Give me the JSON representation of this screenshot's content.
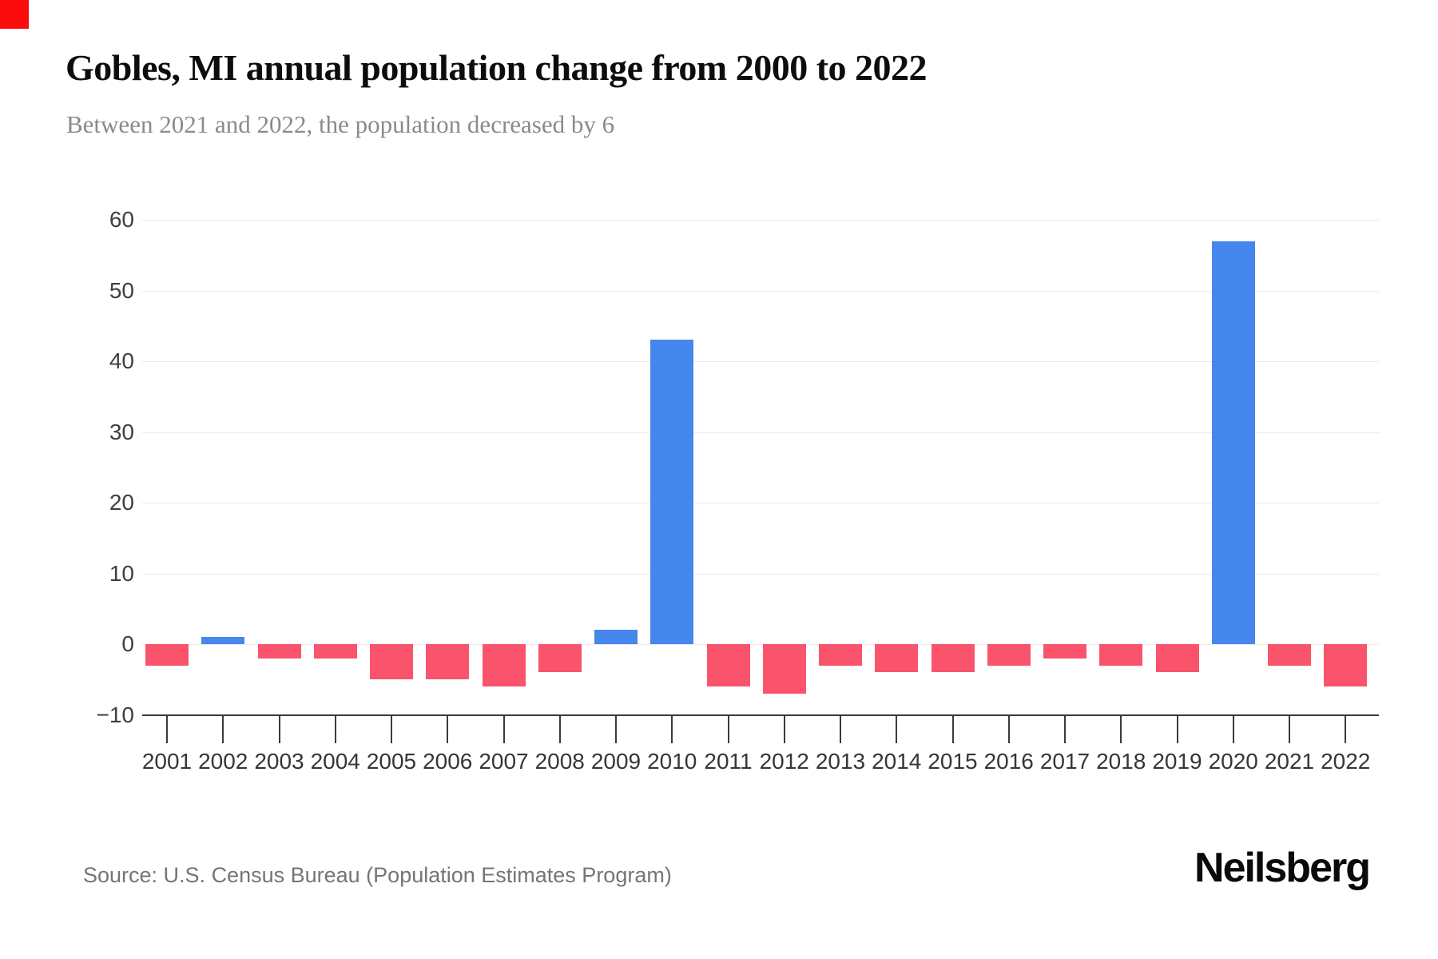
{
  "page": {
    "title": "Gobles, MI annual population change from 2000 to 2022",
    "subtitle": "Between 2021 and 2022, the population decreased by 6",
    "source": "Source: U.S. Census Bureau (Population Estimates Program)",
    "brand": "Neilsberg"
  },
  "colors": {
    "positive_bar": "#4587ec",
    "negative_bar": "#f9546c",
    "gridline": "#ececec",
    "axis": "#3a3a3a",
    "title": "#0d0d0d",
    "subtitle": "#8a8a8a",
    "source": "#757575",
    "corner_marker": "#fb0b0b"
  },
  "chart_data": {
    "type": "bar",
    "title": "Gobles, MI annual population change from 2000 to 2022",
    "subtitle": "Between 2021 and 2022, the population decreased by 6",
    "categories": [
      "2001",
      "2002",
      "2003",
      "2004",
      "2005",
      "2006",
      "2007",
      "2008",
      "2009",
      "2010",
      "2011",
      "2012",
      "2013",
      "2014",
      "2015",
      "2016",
      "2017",
      "2018",
      "2019",
      "2020",
      "2021",
      "2022"
    ],
    "values": [
      -3,
      1,
      -2,
      -2,
      -5,
      -5,
      -6,
      -4,
      2,
      43,
      -6,
      -7,
      -3,
      -4,
      -4,
      -3,
      -2,
      -3,
      -4,
      57,
      -3,
      -6
    ],
    "xlabel": "",
    "ylabel": "",
    "ylim": [
      -10,
      60
    ],
    "ytick_step": 10,
    "grid": "horizontal-only",
    "legend": "none",
    "positive_color": "#4587ec",
    "negative_color": "#f9546c"
  }
}
